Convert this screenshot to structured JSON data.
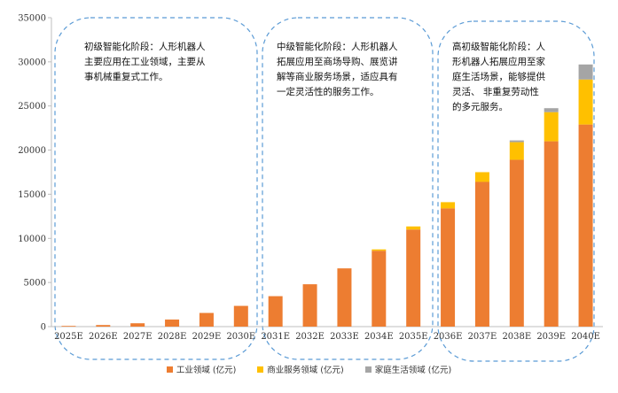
{
  "chart_data": {
    "type": "bar",
    "stacked": true,
    "categories": [
      "2025E",
      "2026E",
      "2027E",
      "2028E",
      "2029E",
      "2030E",
      "2031E",
      "2032E",
      "2033E",
      "2034E",
      "2035E",
      "2036E",
      "2037E",
      "2038E",
      "2039E",
      "2040E"
    ],
    "series": [
      {
        "name": "工业领域 (亿元)",
        "color": "#ED7D31",
        "values": [
          80,
          180,
          380,
          800,
          1550,
          2350,
          3450,
          4800,
          6600,
          8600,
          11000,
          13400,
          16400,
          18900,
          21000,
          22900
        ]
      },
      {
        "name": "商业服务领域 (亿元)",
        "color": "#FFC000",
        "values": [
          0,
          0,
          0,
          0,
          0,
          0,
          0,
          0,
          0,
          150,
          350,
          700,
          1100,
          2000,
          3300,
          5100
        ]
      },
      {
        "name": "家庭生活领域 (亿元)",
        "color": "#A5A5A5",
        "values": [
          0,
          0,
          0,
          0,
          0,
          0,
          0,
          0,
          0,
          0,
          0,
          0,
          0,
          200,
          450,
          1700
        ]
      }
    ],
    "ylim": [
      0,
      35000
    ],
    "yticks": [
      0,
      5000,
      10000,
      15000,
      20000,
      25000,
      30000,
      35000
    ],
    "grid": false,
    "legend_position": "bottom",
    "annotations": [
      "初级智能化阶段：人形机器人\n主要应用在工业领域，主要从\n事机械重复式工作。",
      "中级智能化阶段：人形机器人\n拓展应用至商场导购、展览讲\n解等商业服务场景，适应具有\n一定灵活性的服务工作。",
      "高初级智能化阶段：人\n形机器人拓展应用至家\n庭生活场景，能够提供\n灵活、 非重复劳动性\n的多元服务。"
    ]
  }
}
